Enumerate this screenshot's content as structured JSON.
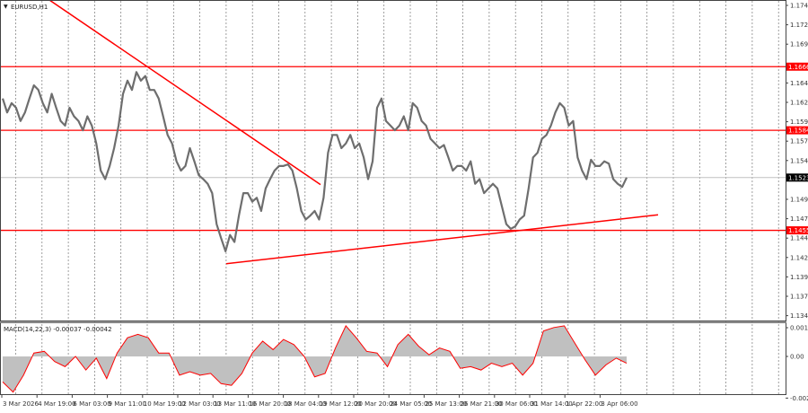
{
  "symbol_title": "EURUSD,H1",
  "indicator_label": "MACD(14,22,3) -0.00037 -0.00042",
  "colors": {
    "candles": "#6e6e6e",
    "levels": "#ff0000",
    "current_price_line": "#c0c0c0",
    "histogram": "#c0c0c0",
    "signal": "#ff0000",
    "current_price_badge": "#000000"
  },
  "chart_data": [
    {
      "type": "line",
      "title": "EURUSD,H1",
      "ylim": [
        1.1338,
        1.1752
      ],
      "y_ticks": [
        "1.1745",
        "1.1720",
        "1.1695",
        "1.1645",
        "1.1620",
        "1.1595",
        "1.1570",
        "1.1545",
        "1.1495",
        "1.1470",
        "1.1445",
        "1.1420",
        "1.1395",
        "1.1370",
        "1.1345"
      ],
      "x_tick_labels": [
        "3 Mar 2026",
        "4 Mar 19:00",
        "6 Mar 03:00",
        "9 Mar 11:00",
        "10 Mar 19:00",
        "12 Mar 03:00",
        "13 Mar 11:00",
        "16 Mar 20:00",
        "18 Mar 04:00",
        "19 Mar 12:00",
        "20 Mar 20:00",
        "24 Mar 05:00",
        "25 Mar 13:00",
        "26 Mar 21:00",
        "30 Mar 06:00",
        "31 Mar 14:00",
        "1 Apr 22:00",
        "3 Apr 06:00"
      ],
      "grid": true,
      "series": [
        {
          "values": [
            1.1625,
            1.1607,
            1.1619,
            1.1613,
            1.1596,
            1.1607,
            1.1625,
            1.1642,
            1.1636,
            1.1619,
            1.1607,
            1.1631,
            1.1613,
            1.1596,
            1.159,
            1.1613,
            1.1602,
            1.1596,
            1.1584,
            1.1602,
            1.159,
            1.1567,
            1.1532,
            1.1521,
            1.1538,
            1.1561,
            1.159,
            1.1631,
            1.1648,
            1.1636,
            1.1659,
            1.1648,
            1.1654,
            1.1636,
            1.1636,
            1.1625,
            1.1602,
            1.1578,
            1.1567,
            1.1544,
            1.1532,
            1.1538,
            1.1561,
            1.1544,
            1.1526,
            1.1521,
            1.1515,
            1.1503,
            1.1463,
            1.1445,
            1.1428,
            1.1449,
            1.144,
            1.1474,
            1.1503,
            1.1503,
            1.1492,
            1.1497,
            1.148,
            1.1509,
            1.1521,
            1.1532,
            1.1538,
            1.1538,
            1.154,
            1.1532,
            1.1509,
            1.148,
            1.1469,
            1.1474,
            1.148,
            1.1469,
            1.1497,
            1.1555,
            1.1578,
            1.1578,
            1.1561,
            1.1567,
            1.1578,
            1.1561,
            1.1567,
            1.1549,
            1.1521,
            1.1544,
            1.1613,
            1.1625,
            1.1596,
            1.159,
            1.1584,
            1.159,
            1.1602,
            1.1584,
            1.1619,
            1.1613,
            1.1596,
            1.159,
            1.1573,
            1.1567,
            1.1561,
            1.1565,
            1.1549,
            1.1532,
            1.1538,
            1.1538,
            1.1532,
            1.1544,
            1.1515,
            1.1521,
            1.1503,
            1.1509,
            1.1515,
            1.1509,
            1.1486,
            1.1463,
            1.1457,
            1.146,
            1.1469,
            1.1474,
            1.1509,
            1.1549,
            1.1555,
            1.1573,
            1.1578,
            1.159,
            1.1607,
            1.1619,
            1.1613,
            1.159,
            1.1596,
            1.1549,
            1.1532,
            1.1521,
            1.1546,
            1.1538,
            1.1538,
            1.1544,
            1.1541,
            1.1521,
            1.1515,
            1.1511,
            1.1523
          ]
        }
      ],
      "current_price": "1.1523",
      "horizontal_levels": [
        {
          "label": "1.1666",
          "value": 1.1666
        },
        {
          "label": "1.1584",
          "value": 1.1584
        },
        {
          "label": "1.1455",
          "value": 1.1455
        }
      ],
      "trendlines": [
        {
          "name": "descending",
          "start_price": 1.1752,
          "end_price": 1.1514
        },
        {
          "name": "ascending support",
          "start_price": 1.1412,
          "end_price": 1.1475
        }
      ]
    },
    {
      "type": "bar",
      "title": "MACD(14,22,3) -0.00037 -0.00042",
      "ylim": [
        -0.00245,
        0.00169
      ],
      "y_ticks": [
        "0.00169",
        "0.00",
        "-0.00245"
      ],
      "series": [
        {
          "values": [
            -0.0015,
            -0.0021,
            -0.0011,
            0.0002,
            0.0003,
            -0.0003,
            -0.0006,
            0.0,
            -0.0008,
            -0.0001,
            -0.0013,
            0.0002,
            0.0011,
            0.0013,
            0.0011,
            0.0002,
            0.0002,
            -0.0011,
            -0.0009,
            -0.0011,
            -0.001,
            -0.0016,
            -0.0017,
            -0.001,
            0.0002,
            0.0009,
            0.0004,
            0.001,
            0.0007,
            0.0,
            -0.0012,
            -0.001,
            0.0005,
            0.0018,
            0.0011,
            0.0003,
            0.0002,
            -0.0006,
            0.0007,
            0.0013,
            0.0006,
            0.0001,
            0.0005,
            0.0003,
            -0.0007,
            -0.0006,
            -0.0008,
            -0.0004,
            -0.0006,
            -0.0004,
            -0.0011,
            -0.0004,
            0.0015,
            0.0017,
            0.0018,
            0.0008,
            -0.0002,
            -0.0011,
            -0.0005,
            -0.0001,
            -0.0004
          ]
        }
      ]
    }
  ]
}
